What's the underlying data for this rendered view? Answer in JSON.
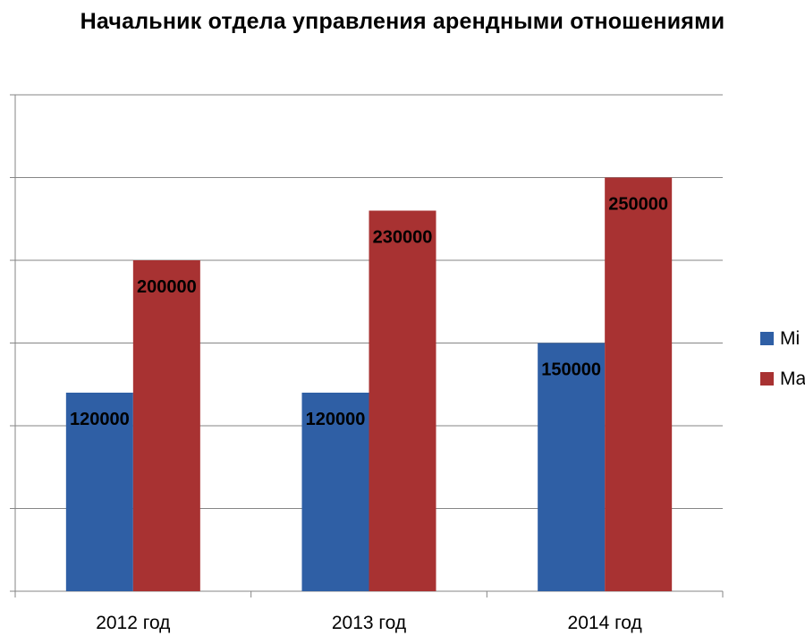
{
  "chart_data": {
    "type": "bar",
    "title": "Начальник отдела управления арендными отношениями",
    "categories": [
      "2012 год",
      "2013 год",
      "2014 год"
    ],
    "series": [
      {
        "name": "Mi",
        "color": "#2f5fa5",
        "values": [
          120000,
          120000,
          150000
        ]
      },
      {
        "name": "Ma",
        "color": "#a83232",
        "values": [
          200000,
          230000,
          250000
        ]
      }
    ],
    "ylim": [
      0,
      300000
    ],
    "y_gridline_step": 50000,
    "grid": true,
    "y_tick_labels_visible": false,
    "legend_position": "right",
    "xlabel": "",
    "ylabel": ""
  }
}
